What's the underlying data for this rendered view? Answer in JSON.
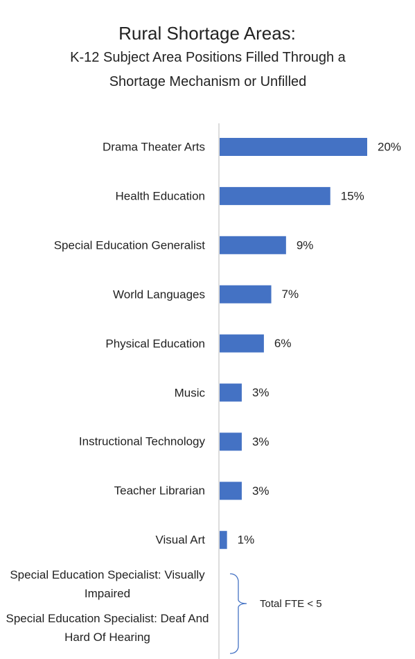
{
  "chart_data": {
    "type": "bar",
    "orientation": "horizontal",
    "title": "Rural Shortage Areas:",
    "subtitle": "K-12 Subject Area Positions Filled Through a Shortage Mechanism or Unfilled",
    "categories": [
      "Drama Theater Arts",
      "Health Education",
      "Special Education Generalist",
      "World Languages",
      "Physical Education",
      "Music",
      "Instructional Technology",
      "Teacher Librarian",
      "Visual Art",
      "Special Education Specialist: Visually Impaired",
      "Special Education Specialist: Deaf And Hard Of Hearing"
    ],
    "values": [
      20,
      15,
      9,
      7,
      6,
      3,
      3,
      3,
      1,
      null,
      null
    ],
    "value_labels": [
      "20%",
      "15%",
      "9%",
      "7%",
      "6%",
      "3%",
      "3%",
      "3%",
      "1%",
      null,
      null
    ],
    "color": "#4472c4",
    "xlim": [
      0,
      20
    ],
    "annotation": "Total FTE < 5"
  }
}
